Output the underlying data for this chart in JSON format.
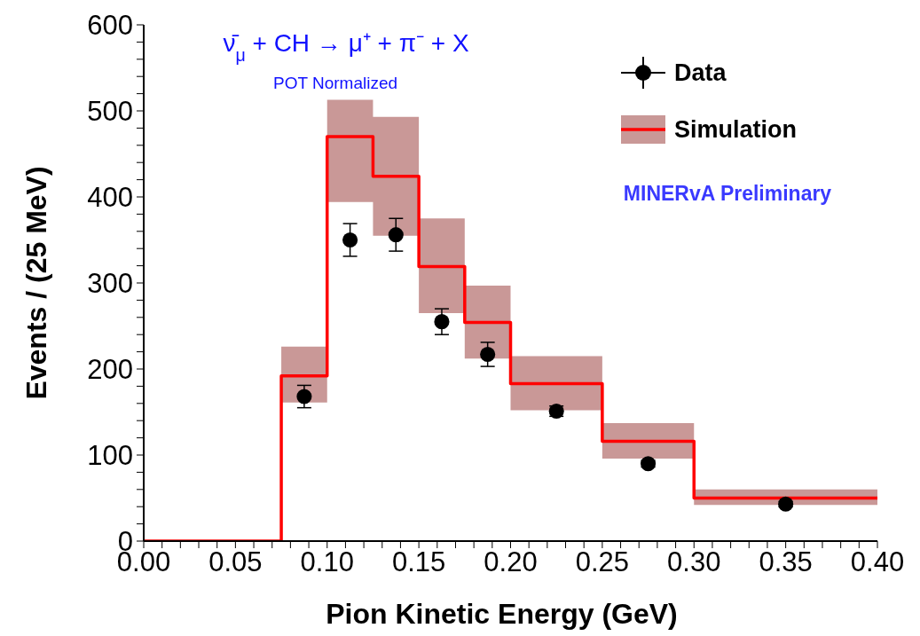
{
  "chart_data": {
    "type": "step",
    "title": "ν̄$_{μ}$ + CH → μ⁺ + π⁻ + X",
    "subtitle": "POT Normalized",
    "xlabel": "Pion Kinetic Energy (GeV)",
    "ylabel": "Events / (25 MeV)",
    "annotations": [
      "MINERvA Preliminary"
    ],
    "series": [
      {
        "name": "Simulation",
        "color": "#ff0000",
        "x": [
          0,
          0.075,
          0.1,
          0.125,
          0.15,
          0.175,
          0.2,
          0.25,
          0.3,
          0.4
        ],
        "values": [
          0,
          192,
          470,
          424,
          319,
          254,
          183,
          116,
          50,
          50
        ],
        "lower": [
          null,
          161,
          394,
          355,
          265,
          212,
          152,
          96,
          42,
          42
        ],
        "upper": [
          null,
          226,
          513,
          493,
          375,
          297,
          215,
          137,
          60,
          60
        ]
      },
      {
        "name": "Data",
        "type": "scatter",
        "color": "#000000",
        "marker": "circle",
        "x": [
          0.0875,
          0.1125,
          0.1375,
          0.1625,
          0.1875,
          0.225,
          0.275,
          0.35
        ],
        "values": [
          168,
          350,
          356,
          255,
          217,
          151,
          90,
          43
        ],
        "errors": [
          13,
          19,
          19,
          15,
          14,
          6,
          4,
          3
        ]
      }
    ],
    "xlim": [
      0,
      0.4
    ],
    "ylim": [
      0,
      600
    ],
    "xticks": [
      {
        "value": 0,
        "label": "0.00"
      },
      {
        "value": 0.01,
        "label": null
      },
      {
        "value": 0.02,
        "label": null
      },
      {
        "value": 0.03,
        "label": null
      },
      {
        "value": 0.04,
        "label": null
      },
      {
        "value": 0.05,
        "label": "0.05"
      },
      {
        "value": 0.06,
        "label": null
      },
      {
        "value": 0.07,
        "label": null
      },
      {
        "value": 0.08,
        "label": null
      },
      {
        "value": 0.09,
        "label": null
      },
      {
        "value": 0.1,
        "label": "0.10"
      },
      {
        "value": 0.11,
        "label": null
      },
      {
        "value": 0.12,
        "label": null
      },
      {
        "value": 0.13,
        "label": null
      },
      {
        "value": 0.14,
        "label": null
      },
      {
        "value": 0.15,
        "label": "0.15"
      },
      {
        "value": 0.16,
        "label": null
      },
      {
        "value": 0.17,
        "label": null
      },
      {
        "value": 0.18,
        "label": null
      },
      {
        "value": 0.19,
        "label": null
      },
      {
        "value": 0.2,
        "label": "0.20"
      },
      {
        "value": 0.21,
        "label": null
      },
      {
        "value": 0.22,
        "label": null
      },
      {
        "value": 0.23,
        "label": null
      },
      {
        "value": 0.24,
        "label": null
      },
      {
        "value": 0.25,
        "label": "0.25"
      },
      {
        "value": 0.26,
        "label": null
      },
      {
        "value": 0.27,
        "label": null
      },
      {
        "value": 0.28,
        "label": null
      },
      {
        "value": 0.29,
        "label": null
      },
      {
        "value": 0.3,
        "label": "0.30"
      },
      {
        "value": 0.31,
        "label": null
      },
      {
        "value": 0.32,
        "label": null
      },
      {
        "value": 0.33,
        "label": null
      },
      {
        "value": 0.34,
        "label": null
      },
      {
        "value": 0.35,
        "label": "0.35"
      },
      {
        "value": 0.36,
        "label": null
      },
      {
        "value": 0.37,
        "label": null
      },
      {
        "value": 0.38,
        "label": null
      },
      {
        "value": 0.39,
        "label": null
      },
      {
        "value": 0.4,
        "label": "0.40"
      }
    ],
    "yticks": [
      0,
      {
        "value": 20,
        "label": null
      },
      {
        "value": 40,
        "label": null
      },
      {
        "value": 60,
        "label": null
      },
      {
        "value": 80,
        "label": null
      },
      100,
      {
        "value": 120,
        "label": null
      },
      {
        "value": 140,
        "label": null
      },
      {
        "value": 160,
        "label": null
      },
      {
        "value": 180,
        "label": null
      },
      200,
      {
        "value": 220,
        "label": null
      },
      {
        "value": 240,
        "label": null
      },
      {
        "value": 260,
        "label": null
      },
      {
        "value": 280,
        "label": null
      },
      300,
      {
        "value": 320,
        "label": null
      },
      {
        "value": 340,
        "label": null
      },
      {
        "value": 360,
        "label": null
      },
      {
        "value": 380,
        "label": null
      },
      400,
      {
        "value": 420,
        "label": null
      },
      {
        "value": 440,
        "label": null
      },
      {
        "value": 460,
        "label": null
      },
      {
        "value": 480,
        "label": null
      },
      500,
      {
        "value": 520,
        "label": null
      },
      {
        "value": 540,
        "label": null
      },
      {
        "value": 560,
        "label": null
      },
      {
        "value": 580,
        "label": null
      },
      600
    ],
    "legend": "top right",
    "grid": false
  }
}
